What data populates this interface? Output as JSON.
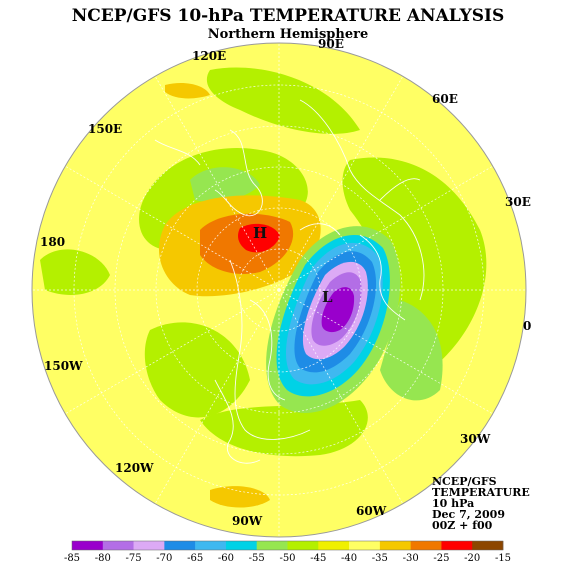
{
  "title": "NCEP/GFS 10-hPa TEMPERATURE ANALYSIS",
  "subtitle": "Northern Hemisphere",
  "longitude_labels": [
    "90E",
    "60E",
    "30E",
    "0",
    "30W",
    "60W",
    "90W",
    "120W",
    "150W",
    "180",
    "150E",
    "120E"
  ],
  "pressure_centers": [
    {
      "label": "H",
      "meaning": "warm center"
    },
    {
      "label": "L",
      "meaning": "cold center"
    }
  ],
  "info_box": {
    "line1": "NCEP/GFS",
    "line2": "TEMPERATURE",
    "line3": "10 hPa",
    "line4": "Dec 7, 2009",
    "line5": "00Z + f00"
  },
  "colorbar": {
    "labels": [
      "-85",
      "-80",
      "-75",
      "-70",
      "-65",
      "-60",
      "-55",
      "-50",
      "-45",
      "-40",
      "-35",
      "-30",
      "-25",
      "-20",
      "-15"
    ],
    "colors": [
      "#9900cc",
      "#b36ee6",
      "#dcaaf5",
      "#1e8ce6",
      "#3fb8f0",
      "#00d2e6",
      "#96e650",
      "#b4f000",
      "#f0f000",
      "#ffff64",
      "#f5c800",
      "#f07800",
      "#ff0000",
      "#8c4600"
    ]
  }
}
